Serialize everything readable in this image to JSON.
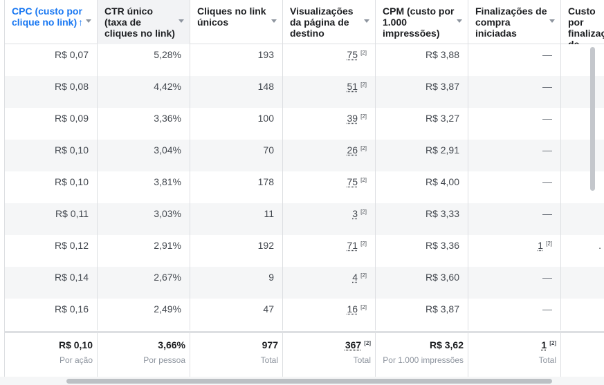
{
  "columns": [
    {
      "label": "CPC (custo por clique no link)",
      "sorted": true
    },
    {
      "label": "CTR único (taxa de cliques no link)",
      "sorted": false
    },
    {
      "label": "Cliques no link únicos",
      "sorted": false
    },
    {
      "label": "Visualizações da página de destino",
      "sorted": false
    },
    {
      "label": "CPM (custo por 1.000 impressões)",
      "sorted": false
    },
    {
      "label": "Finalizações de compra iniciadas",
      "sorted": false
    },
    {
      "label": "Custo por finalização de compra",
      "sorted": false
    }
  ],
  "sort_arrow": "↑",
  "footnote_marker": "[2]",
  "rows": [
    {
      "cpc": "R$ 0,07",
      "ctr": "5,28%",
      "clicks": "193",
      "views": "75",
      "cpm": "R$ 3,88",
      "checkouts": "—",
      "cost": ""
    },
    {
      "cpc": "R$ 0,08",
      "ctr": "4,42%",
      "clicks": "148",
      "views": "51",
      "cpm": "R$ 3,87",
      "checkouts": "—",
      "cost": ""
    },
    {
      "cpc": "R$ 0,09",
      "ctr": "3,36%",
      "clicks": "100",
      "views": "39",
      "cpm": "R$ 3,27",
      "checkouts": "—",
      "cost": ""
    },
    {
      "cpc": "R$ 0,10",
      "ctr": "3,04%",
      "clicks": "70",
      "views": "26",
      "cpm": "R$ 2,91",
      "checkouts": "—",
      "cost": ""
    },
    {
      "cpc": "R$ 0,10",
      "ctr": "3,81%",
      "clicks": "178",
      "views": "75",
      "cpm": "R$ 4,00",
      "checkouts": "—",
      "cost": ""
    },
    {
      "cpc": "R$ 0,11",
      "ctr": "3,03%",
      "clicks": "11",
      "views": "3",
      "cpm": "R$ 3,33",
      "checkouts": "—",
      "cost": ""
    },
    {
      "cpc": "R$ 0,12",
      "ctr": "2,91%",
      "clicks": "192",
      "views": "71",
      "cpm": "R$ 3,36",
      "checkouts": "1",
      "cost": "."
    },
    {
      "cpc": "R$ 0,14",
      "ctr": "2,67%",
      "clicks": "9",
      "views": "4",
      "cpm": "R$ 3,60",
      "checkouts": "—",
      "cost": ""
    },
    {
      "cpc": "R$ 0,16",
      "ctr": "2,49%",
      "clicks": "47",
      "views": "16",
      "cpm": "R$ 3,87",
      "checkouts": "—",
      "cost": ""
    }
  ],
  "summary": [
    {
      "value": "R$ 0,10",
      "sub": "Por ação"
    },
    {
      "value": "3,66%",
      "sub": "Por pessoa"
    },
    {
      "value": "977",
      "sub": "Total"
    },
    {
      "value": "367",
      "sub": "Total",
      "footnote": true
    },
    {
      "value": "R$ 3,62",
      "sub": "Por 1.000 impressões"
    },
    {
      "value": "1",
      "sub": "Total",
      "footnote": true
    },
    {
      "value": "",
      "sub": ""
    }
  ]
}
